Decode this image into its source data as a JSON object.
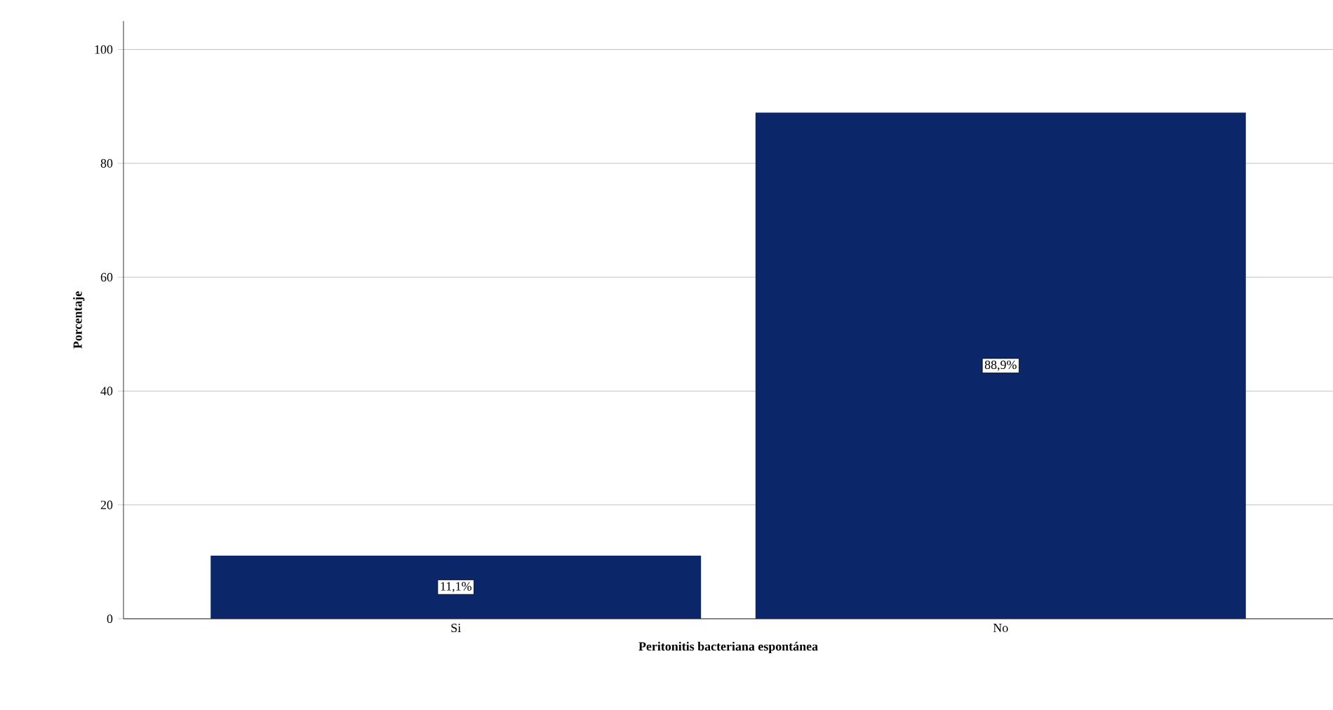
{
  "chart_data": {
    "type": "bar",
    "xlabel": "Peritonitis bacteriana espontánea",
    "ylabel": "Porcentaje",
    "categories": [
      "Si",
      "No"
    ],
    "values": [
      11.1,
      88.9
    ],
    "value_labels": [
      "11,1%",
      "88,9%"
    ],
    "color": "#0b2669",
    "ylim": [
      0,
      105
    ],
    "yticks": [
      0,
      20,
      40,
      60,
      80,
      100
    ],
    "grid": "y"
  }
}
